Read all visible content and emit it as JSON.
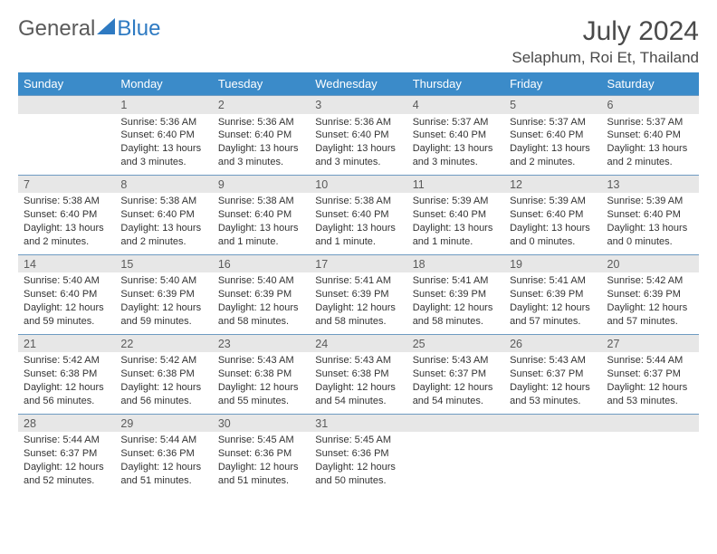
{
  "brand": {
    "part1": "General",
    "part2": "Blue",
    "icon_color": "#2e7ac2",
    "text_color": "#5a5a5a"
  },
  "header": {
    "month_title": "July 2024",
    "location": "Selaphum, Roi Et, Thailand"
  },
  "colors": {
    "header_bg": "#3b8bc9",
    "header_text": "#ffffff",
    "daynum_bg": "#e7e7e7",
    "daynum_border": "#6e9bc2",
    "body_text": "#333333"
  },
  "days_of_week": [
    "Sunday",
    "Monday",
    "Tuesday",
    "Wednesday",
    "Thursday",
    "Friday",
    "Saturday"
  ],
  "weeks": [
    [
      null,
      {
        "n": "1",
        "sr": "5:36 AM",
        "ss": "6:40 PM",
        "d1": "13 hours",
        "d2": "and 3 minutes."
      },
      {
        "n": "2",
        "sr": "5:36 AM",
        "ss": "6:40 PM",
        "d1": "13 hours",
        "d2": "and 3 minutes."
      },
      {
        "n": "3",
        "sr": "5:36 AM",
        "ss": "6:40 PM",
        "d1": "13 hours",
        "d2": "and 3 minutes."
      },
      {
        "n": "4",
        "sr": "5:37 AM",
        "ss": "6:40 PM",
        "d1": "13 hours",
        "d2": "and 3 minutes."
      },
      {
        "n": "5",
        "sr": "5:37 AM",
        "ss": "6:40 PM",
        "d1": "13 hours",
        "d2": "and 2 minutes."
      },
      {
        "n": "6",
        "sr": "5:37 AM",
        "ss": "6:40 PM",
        "d1": "13 hours",
        "d2": "and 2 minutes."
      }
    ],
    [
      {
        "n": "7",
        "sr": "5:38 AM",
        "ss": "6:40 PM",
        "d1": "13 hours",
        "d2": "and 2 minutes."
      },
      {
        "n": "8",
        "sr": "5:38 AM",
        "ss": "6:40 PM",
        "d1": "13 hours",
        "d2": "and 2 minutes."
      },
      {
        "n": "9",
        "sr": "5:38 AM",
        "ss": "6:40 PM",
        "d1": "13 hours",
        "d2": "and 1 minute."
      },
      {
        "n": "10",
        "sr": "5:38 AM",
        "ss": "6:40 PM",
        "d1": "13 hours",
        "d2": "and 1 minute."
      },
      {
        "n": "11",
        "sr": "5:39 AM",
        "ss": "6:40 PM",
        "d1": "13 hours",
        "d2": "and 1 minute."
      },
      {
        "n": "12",
        "sr": "5:39 AM",
        "ss": "6:40 PM",
        "d1": "13 hours",
        "d2": "and 0 minutes."
      },
      {
        "n": "13",
        "sr": "5:39 AM",
        "ss": "6:40 PM",
        "d1": "13 hours",
        "d2": "and 0 minutes."
      }
    ],
    [
      {
        "n": "14",
        "sr": "5:40 AM",
        "ss": "6:40 PM",
        "d1": "12 hours",
        "d2": "and 59 minutes."
      },
      {
        "n": "15",
        "sr": "5:40 AM",
        "ss": "6:39 PM",
        "d1": "12 hours",
        "d2": "and 59 minutes."
      },
      {
        "n": "16",
        "sr": "5:40 AM",
        "ss": "6:39 PM",
        "d1": "12 hours",
        "d2": "and 58 minutes."
      },
      {
        "n": "17",
        "sr": "5:41 AM",
        "ss": "6:39 PM",
        "d1": "12 hours",
        "d2": "and 58 minutes."
      },
      {
        "n": "18",
        "sr": "5:41 AM",
        "ss": "6:39 PM",
        "d1": "12 hours",
        "d2": "and 58 minutes."
      },
      {
        "n": "19",
        "sr": "5:41 AM",
        "ss": "6:39 PM",
        "d1": "12 hours",
        "d2": "and 57 minutes."
      },
      {
        "n": "20",
        "sr": "5:42 AM",
        "ss": "6:39 PM",
        "d1": "12 hours",
        "d2": "and 57 minutes."
      }
    ],
    [
      {
        "n": "21",
        "sr": "5:42 AM",
        "ss": "6:38 PM",
        "d1": "12 hours",
        "d2": "and 56 minutes."
      },
      {
        "n": "22",
        "sr": "5:42 AM",
        "ss": "6:38 PM",
        "d1": "12 hours",
        "d2": "and 56 minutes."
      },
      {
        "n": "23",
        "sr": "5:43 AM",
        "ss": "6:38 PM",
        "d1": "12 hours",
        "d2": "and 55 minutes."
      },
      {
        "n": "24",
        "sr": "5:43 AM",
        "ss": "6:38 PM",
        "d1": "12 hours",
        "d2": "and 54 minutes."
      },
      {
        "n": "25",
        "sr": "5:43 AM",
        "ss": "6:37 PM",
        "d1": "12 hours",
        "d2": "and 54 minutes."
      },
      {
        "n": "26",
        "sr": "5:43 AM",
        "ss": "6:37 PM",
        "d1": "12 hours",
        "d2": "and 53 minutes."
      },
      {
        "n": "27",
        "sr": "5:44 AM",
        "ss": "6:37 PM",
        "d1": "12 hours",
        "d2": "and 53 minutes."
      }
    ],
    [
      {
        "n": "28",
        "sr": "5:44 AM",
        "ss": "6:37 PM",
        "d1": "12 hours",
        "d2": "and 52 minutes."
      },
      {
        "n": "29",
        "sr": "5:44 AM",
        "ss": "6:36 PM",
        "d1": "12 hours",
        "d2": "and 51 minutes."
      },
      {
        "n": "30",
        "sr": "5:45 AM",
        "ss": "6:36 PM",
        "d1": "12 hours",
        "d2": "and 51 minutes."
      },
      {
        "n": "31",
        "sr": "5:45 AM",
        "ss": "6:36 PM",
        "d1": "12 hours",
        "d2": "and 50 minutes."
      },
      null,
      null,
      null
    ]
  ],
  "labels": {
    "sunrise": "Sunrise:",
    "sunset": "Sunset:",
    "daylight": "Daylight:"
  }
}
